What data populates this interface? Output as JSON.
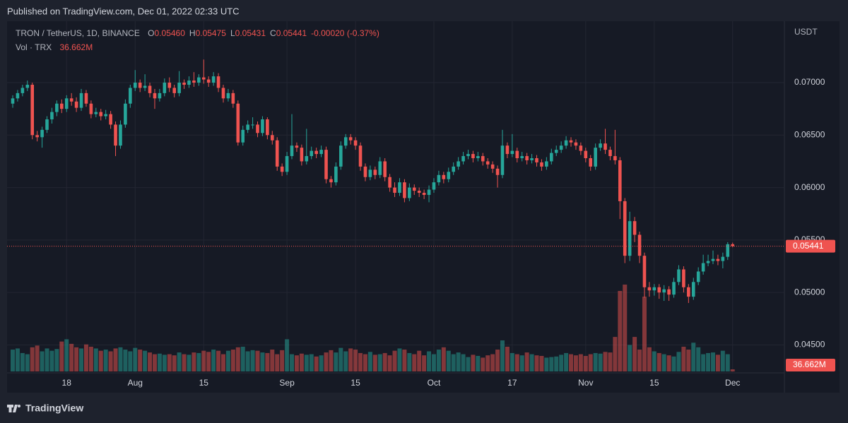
{
  "header": "Published on TradingView.com, Dec 01, 2022 02:33 UTC",
  "footer": "TradingView",
  "chart_data": {
    "type": "candlestick",
    "legend": {
      "symbol": "TRON / TetherUS, 1D, BINANCE",
      "fields": [
        {
          "key": "O",
          "value": "0.05460"
        },
        {
          "key": "H",
          "value": "0.05475"
        },
        {
          "key": "L",
          "value": "0.05431"
        },
        {
          "key": "C",
          "value": "0.05441"
        }
      ],
      "change": "-0.00020 (-0.37%)"
    },
    "volume_legend": "Vol · TRX",
    "volume_last_label": "36.662M",
    "axis_unit": "USDT",
    "up_color": "#26a69a",
    "down_color": "#ef5350",
    "ylim": [
      0.04234,
      0.07552
    ],
    "yticks": [
      {
        "value": 0.045,
        "label": "0.04500"
      },
      {
        "value": 0.05,
        "label": "0.05000"
      },
      {
        "value": 0.055,
        "label": "0.05500"
      },
      {
        "value": 0.06,
        "label": "0.06000"
      },
      {
        "value": 0.065,
        "label": "0.06500"
      },
      {
        "value": 0.07,
        "label": "0.07000"
      }
    ],
    "xticks": [
      {
        "value": 11,
        "label": "18"
      },
      {
        "value": 25,
        "label": "Aug"
      },
      {
        "value": 39,
        "label": "15"
      },
      {
        "value": 56,
        "label": "Sep"
      },
      {
        "value": 70,
        "label": "15"
      },
      {
        "value": 86,
        "label": "Oct"
      },
      {
        "value": 102,
        "label": "17"
      },
      {
        "value": 117,
        "label": "Nov"
      },
      {
        "value": 131,
        "label": "15"
      },
      {
        "value": 147,
        "label": "Dec"
      }
    ],
    "grid": true,
    "candles": [
      [
        0.068,
        0.0688,
        0.0676,
        0.0685
      ],
      [
        0.0685,
        0.0693,
        0.0682,
        0.069
      ],
      [
        0.069,
        0.0698,
        0.0687,
        0.0695
      ],
      [
        0.0695,
        0.0702,
        0.0692,
        0.0698
      ],
      [
        0.0698,
        0.07,
        0.0646,
        0.065
      ],
      [
        0.065,
        0.0654,
        0.0644,
        0.0648
      ],
      [
        0.0648,
        0.0658,
        0.0638,
        0.0655
      ],
      [
        0.0655,
        0.0668,
        0.0652,
        0.0665
      ],
      [
        0.0665,
        0.0676,
        0.0661,
        0.0672
      ],
      [
        0.0672,
        0.0683,
        0.0668,
        0.068
      ],
      [
        0.068,
        0.0684,
        0.0671,
        0.0675
      ],
      [
        0.0675,
        0.0688,
        0.0672,
        0.0685
      ],
      [
        0.0685,
        0.069,
        0.0678,
        0.0682
      ],
      [
        0.0682,
        0.0686,
        0.0672,
        0.0676
      ],
      [
        0.0676,
        0.0694,
        0.0673,
        0.069
      ],
      [
        0.069,
        0.0693,
        0.0677,
        0.068
      ],
      [
        0.068,
        0.0683,
        0.0666,
        0.067
      ],
      [
        0.067,
        0.0676,
        0.0667,
        0.0672
      ],
      [
        0.0672,
        0.0675,
        0.0664,
        0.0668
      ],
      [
        0.0668,
        0.0674,
        0.0665,
        0.067
      ],
      [
        0.067,
        0.0673,
        0.0656,
        0.066
      ],
      [
        0.066,
        0.0663,
        0.063,
        0.064
      ],
      [
        0.064,
        0.0664,
        0.0637,
        0.066
      ],
      [
        0.066,
        0.0684,
        0.0657,
        0.068
      ],
      [
        0.068,
        0.0698,
        0.0676,
        0.0695
      ],
      [
        0.0695,
        0.0712,
        0.0692,
        0.07
      ],
      [
        0.07,
        0.0703,
        0.0691,
        0.0695
      ],
      [
        0.0695,
        0.0708,
        0.0692,
        0.0697
      ],
      [
        0.0697,
        0.07,
        0.0686,
        0.069
      ],
      [
        0.069,
        0.0694,
        0.0675,
        0.0685
      ],
      [
        0.0685,
        0.0694,
        0.0682,
        0.069
      ],
      [
        0.069,
        0.0704,
        0.0687,
        0.07
      ],
      [
        0.07,
        0.0705,
        0.0691,
        0.0695
      ],
      [
        0.0695,
        0.0698,
        0.0686,
        0.069
      ],
      [
        0.069,
        0.0711,
        0.0687,
        0.07
      ],
      [
        0.07,
        0.0703,
        0.0694,
        0.0698
      ],
      [
        0.0698,
        0.0706,
        0.0695,
        0.0702
      ],
      [
        0.0702,
        0.071,
        0.0696,
        0.07
      ],
      [
        0.07,
        0.0708,
        0.0697,
        0.0705
      ],
      [
        0.0705,
        0.0722,
        0.0699,
        0.0703
      ],
      [
        0.0703,
        0.0706,
        0.0696,
        0.07
      ],
      [
        0.07,
        0.071,
        0.0697,
        0.0706
      ],
      [
        0.0706,
        0.0709,
        0.0691,
        0.0695
      ],
      [
        0.0695,
        0.0698,
        0.0681,
        0.0685
      ],
      [
        0.0685,
        0.0694,
        0.0682,
        0.069
      ],
      [
        0.069,
        0.0693,
        0.0676,
        0.068
      ],
      [
        0.068,
        0.0683,
        0.064,
        0.0643
      ],
      [
        0.0643,
        0.0659,
        0.064,
        0.0655
      ],
      [
        0.0655,
        0.0664,
        0.0652,
        0.066
      ],
      [
        0.066,
        0.0667,
        0.0656,
        0.066
      ],
      [
        0.066,
        0.0663,
        0.0648,
        0.0652
      ],
      [
        0.0652,
        0.0668,
        0.0649,
        0.0665
      ],
      [
        0.0665,
        0.0667,
        0.0646,
        0.065
      ],
      [
        0.065,
        0.0654,
        0.0641,
        0.0645
      ],
      [
        0.0645,
        0.0648,
        0.0616,
        0.062
      ],
      [
        0.062,
        0.0623,
        0.0611,
        0.0615
      ],
      [
        0.0615,
        0.0634,
        0.0612,
        0.063
      ],
      [
        0.063,
        0.067,
        0.0627,
        0.064
      ],
      [
        0.064,
        0.0643,
        0.0634,
        0.0638
      ],
      [
        0.0638,
        0.0641,
        0.0621,
        0.0625
      ],
      [
        0.0625,
        0.0656,
        0.0622,
        0.063
      ],
      [
        0.063,
        0.0639,
        0.0627,
        0.0635
      ],
      [
        0.0635,
        0.0638,
        0.0628,
        0.0632
      ],
      [
        0.0632,
        0.064,
        0.0629,
        0.0636
      ],
      [
        0.0636,
        0.0639,
        0.0604,
        0.0608
      ],
      [
        0.0608,
        0.0611,
        0.06,
        0.0605
      ],
      [
        0.0605,
        0.0624,
        0.0602,
        0.062
      ],
      [
        0.062,
        0.0644,
        0.0617,
        0.064
      ],
      [
        0.064,
        0.0651,
        0.0637,
        0.0648
      ],
      [
        0.0648,
        0.0651,
        0.0641,
        0.0645
      ],
      [
        0.0645,
        0.0648,
        0.0636,
        0.064
      ],
      [
        0.064,
        0.0643,
        0.0616,
        0.062
      ],
      [
        0.062,
        0.0623,
        0.0606,
        0.061
      ],
      [
        0.061,
        0.0621,
        0.0607,
        0.0617
      ],
      [
        0.0617,
        0.062,
        0.0608,
        0.0612
      ],
      [
        0.0612,
        0.0629,
        0.0609,
        0.0625
      ],
      [
        0.0625,
        0.0628,
        0.0606,
        0.061
      ],
      [
        0.061,
        0.0613,
        0.0596,
        0.06
      ],
      [
        0.06,
        0.0605,
        0.0591,
        0.0595
      ],
      [
        0.0595,
        0.0609,
        0.0592,
        0.0605
      ],
      [
        0.0605,
        0.0608,
        0.0586,
        0.059
      ],
      [
        0.059,
        0.0604,
        0.0587,
        0.06
      ],
      [
        0.06,
        0.0603,
        0.0593,
        0.0597
      ],
      [
        0.0597,
        0.06,
        0.0591,
        0.0595
      ],
      [
        0.0595,
        0.0598,
        0.0589,
        0.0593
      ],
      [
        0.0593,
        0.0602,
        0.0586,
        0.0598
      ],
      [
        0.0598,
        0.0609,
        0.0595,
        0.0605
      ],
      [
        0.0605,
        0.0616,
        0.0602,
        0.0612
      ],
      [
        0.0612,
        0.0615,
        0.0604,
        0.0608
      ],
      [
        0.0608,
        0.0619,
        0.0605,
        0.0615
      ],
      [
        0.0615,
        0.0624,
        0.0612,
        0.062
      ],
      [
        0.062,
        0.0629,
        0.0617,
        0.0625
      ],
      [
        0.0625,
        0.0634,
        0.0622,
        0.063
      ],
      [
        0.063,
        0.0636,
        0.0627,
        0.0632
      ],
      [
        0.0632,
        0.0635,
        0.0624,
        0.0628
      ],
      [
        0.0628,
        0.0634,
        0.0625,
        0.063
      ],
      [
        0.063,
        0.0633,
        0.0621,
        0.0625
      ],
      [
        0.0625,
        0.0628,
        0.0618,
        0.0622
      ],
      [
        0.0622,
        0.0625,
        0.0614,
        0.0618
      ],
      [
        0.0618,
        0.0621,
        0.06,
        0.0612
      ],
      [
        0.0612,
        0.0655,
        0.0609,
        0.064
      ],
      [
        0.064,
        0.0643,
        0.0628,
        0.0632
      ],
      [
        0.0632,
        0.0651,
        0.0629,
        0.0635
      ],
      [
        0.0635,
        0.0638,
        0.0624,
        0.0628
      ],
      [
        0.0628,
        0.0634,
        0.0625,
        0.063
      ],
      [
        0.063,
        0.0633,
        0.0622,
        0.0626
      ],
      [
        0.0626,
        0.0632,
        0.0623,
        0.0628
      ],
      [
        0.0628,
        0.0631,
        0.062,
        0.0624
      ],
      [
        0.0624,
        0.0627,
        0.0616,
        0.062
      ],
      [
        0.062,
        0.0629,
        0.0617,
        0.0625
      ],
      [
        0.0625,
        0.0637,
        0.0622,
        0.0633
      ],
      [
        0.0633,
        0.064,
        0.063,
        0.0636
      ],
      [
        0.0636,
        0.0644,
        0.0633,
        0.064
      ],
      [
        0.064,
        0.0649,
        0.0637,
        0.0645
      ],
      [
        0.0645,
        0.0648,
        0.0639,
        0.0643
      ],
      [
        0.0643,
        0.0646,
        0.0636,
        0.064
      ],
      [
        0.064,
        0.0643,
        0.0631,
        0.0635
      ],
      [
        0.0635,
        0.0638,
        0.0624,
        0.0628
      ],
      [
        0.0628,
        0.0631,
        0.0616,
        0.062
      ],
      [
        0.062,
        0.0642,
        0.0617,
        0.0638
      ],
      [
        0.0638,
        0.0646,
        0.0635,
        0.0642
      ],
      [
        0.0642,
        0.0656,
        0.0632,
        0.0636
      ],
      [
        0.0636,
        0.0639,
        0.0626,
        0.063
      ],
      [
        0.063,
        0.0655,
        0.0622,
        0.0626
      ],
      [
        0.0626,
        0.0629,
        0.057,
        0.0587
      ],
      [
        0.0587,
        0.059,
        0.0528,
        0.0535
      ],
      [
        0.0535,
        0.0577,
        0.053,
        0.0568
      ],
      [
        0.0568,
        0.0572,
        0.0548,
        0.0555
      ],
      [
        0.0555,
        0.0558,
        0.0528,
        0.0535
      ],
      [
        0.0535,
        0.0538,
        0.0495,
        0.0505
      ],
      [
        0.0505,
        0.051,
        0.0496,
        0.0502
      ],
      [
        0.0502,
        0.0508,
        0.0497,
        0.0505
      ],
      [
        0.0505,
        0.0508,
        0.0494,
        0.05
      ],
      [
        0.05,
        0.0507,
        0.0492,
        0.0503
      ],
      [
        0.0503,
        0.0506,
        0.0492,
        0.0498
      ],
      [
        0.0498,
        0.0514,
        0.0495,
        0.051
      ],
      [
        0.051,
        0.0526,
        0.0507,
        0.0522
      ],
      [
        0.0522,
        0.0525,
        0.05,
        0.0505
      ],
      [
        0.0505,
        0.0508,
        0.049,
        0.0496
      ],
      [
        0.0496,
        0.0514,
        0.0493,
        0.051
      ],
      [
        0.051,
        0.0524,
        0.0507,
        0.052
      ],
      [
        0.052,
        0.0536,
        0.0517,
        0.0528
      ],
      [
        0.0528,
        0.0536,
        0.0525,
        0.053
      ],
      [
        0.053,
        0.054,
        0.0527,
        0.0532
      ],
      [
        0.0532,
        0.0536,
        0.0526,
        0.053
      ],
      [
        0.053,
        0.0538,
        0.0523,
        0.0534
      ],
      [
        0.0534,
        0.0548,
        0.0531,
        0.0546
      ],
      [
        0.0546,
        0.05475,
        0.05431,
        0.05441
      ]
    ],
    "volume": [
      380,
      400,
      320,
      300,
      420,
      450,
      350,
      400,
      360,
      390,
      520,
      560,
      480,
      420,
      400,
      470,
      430,
      400,
      360,
      380,
      350,
      400,
      420,
      380,
      350,
      410,
      380,
      360,
      330,
      300,
      310,
      290,
      300,
      280,
      330,
      300,
      290,
      330,
      320,
      360,
      340,
      380,
      360,
      300,
      360,
      380,
      420,
      430,
      350,
      370,
      360,
      330,
      320,
      380,
      300,
      370,
      560,
      300,
      280,
      310,
      290,
      300,
      260,
      280,
      330,
      370,
      330,
      410,
      350,
      400,
      380,
      320,
      300,
      340,
      290,
      300,
      320,
      280,
      360,
      400,
      380,
      320,
      300,
      360,
      280,
      350,
      300,
      380,
      420,
      360,
      300,
      330,
      300,
      250,
      290,
      270,
      240,
      280,
      300,
      380,
      540,
      430,
      320,
      300,
      280,
      330,
      300,
      280,
      270,
      240,
      250,
      260,
      290,
      320,
      300,
      280,
      300,
      270,
      300,
      320,
      310,
      340,
      330,
      600,
      1400,
      1510,
      460,
      600,
      380,
      1300,
      420,
      350,
      320,
      300,
      280,
      260,
      340,
      430,
      380,
      500,
      420,
      300,
      320,
      330,
      290,
      360,
      300,
      36.662
    ]
  }
}
